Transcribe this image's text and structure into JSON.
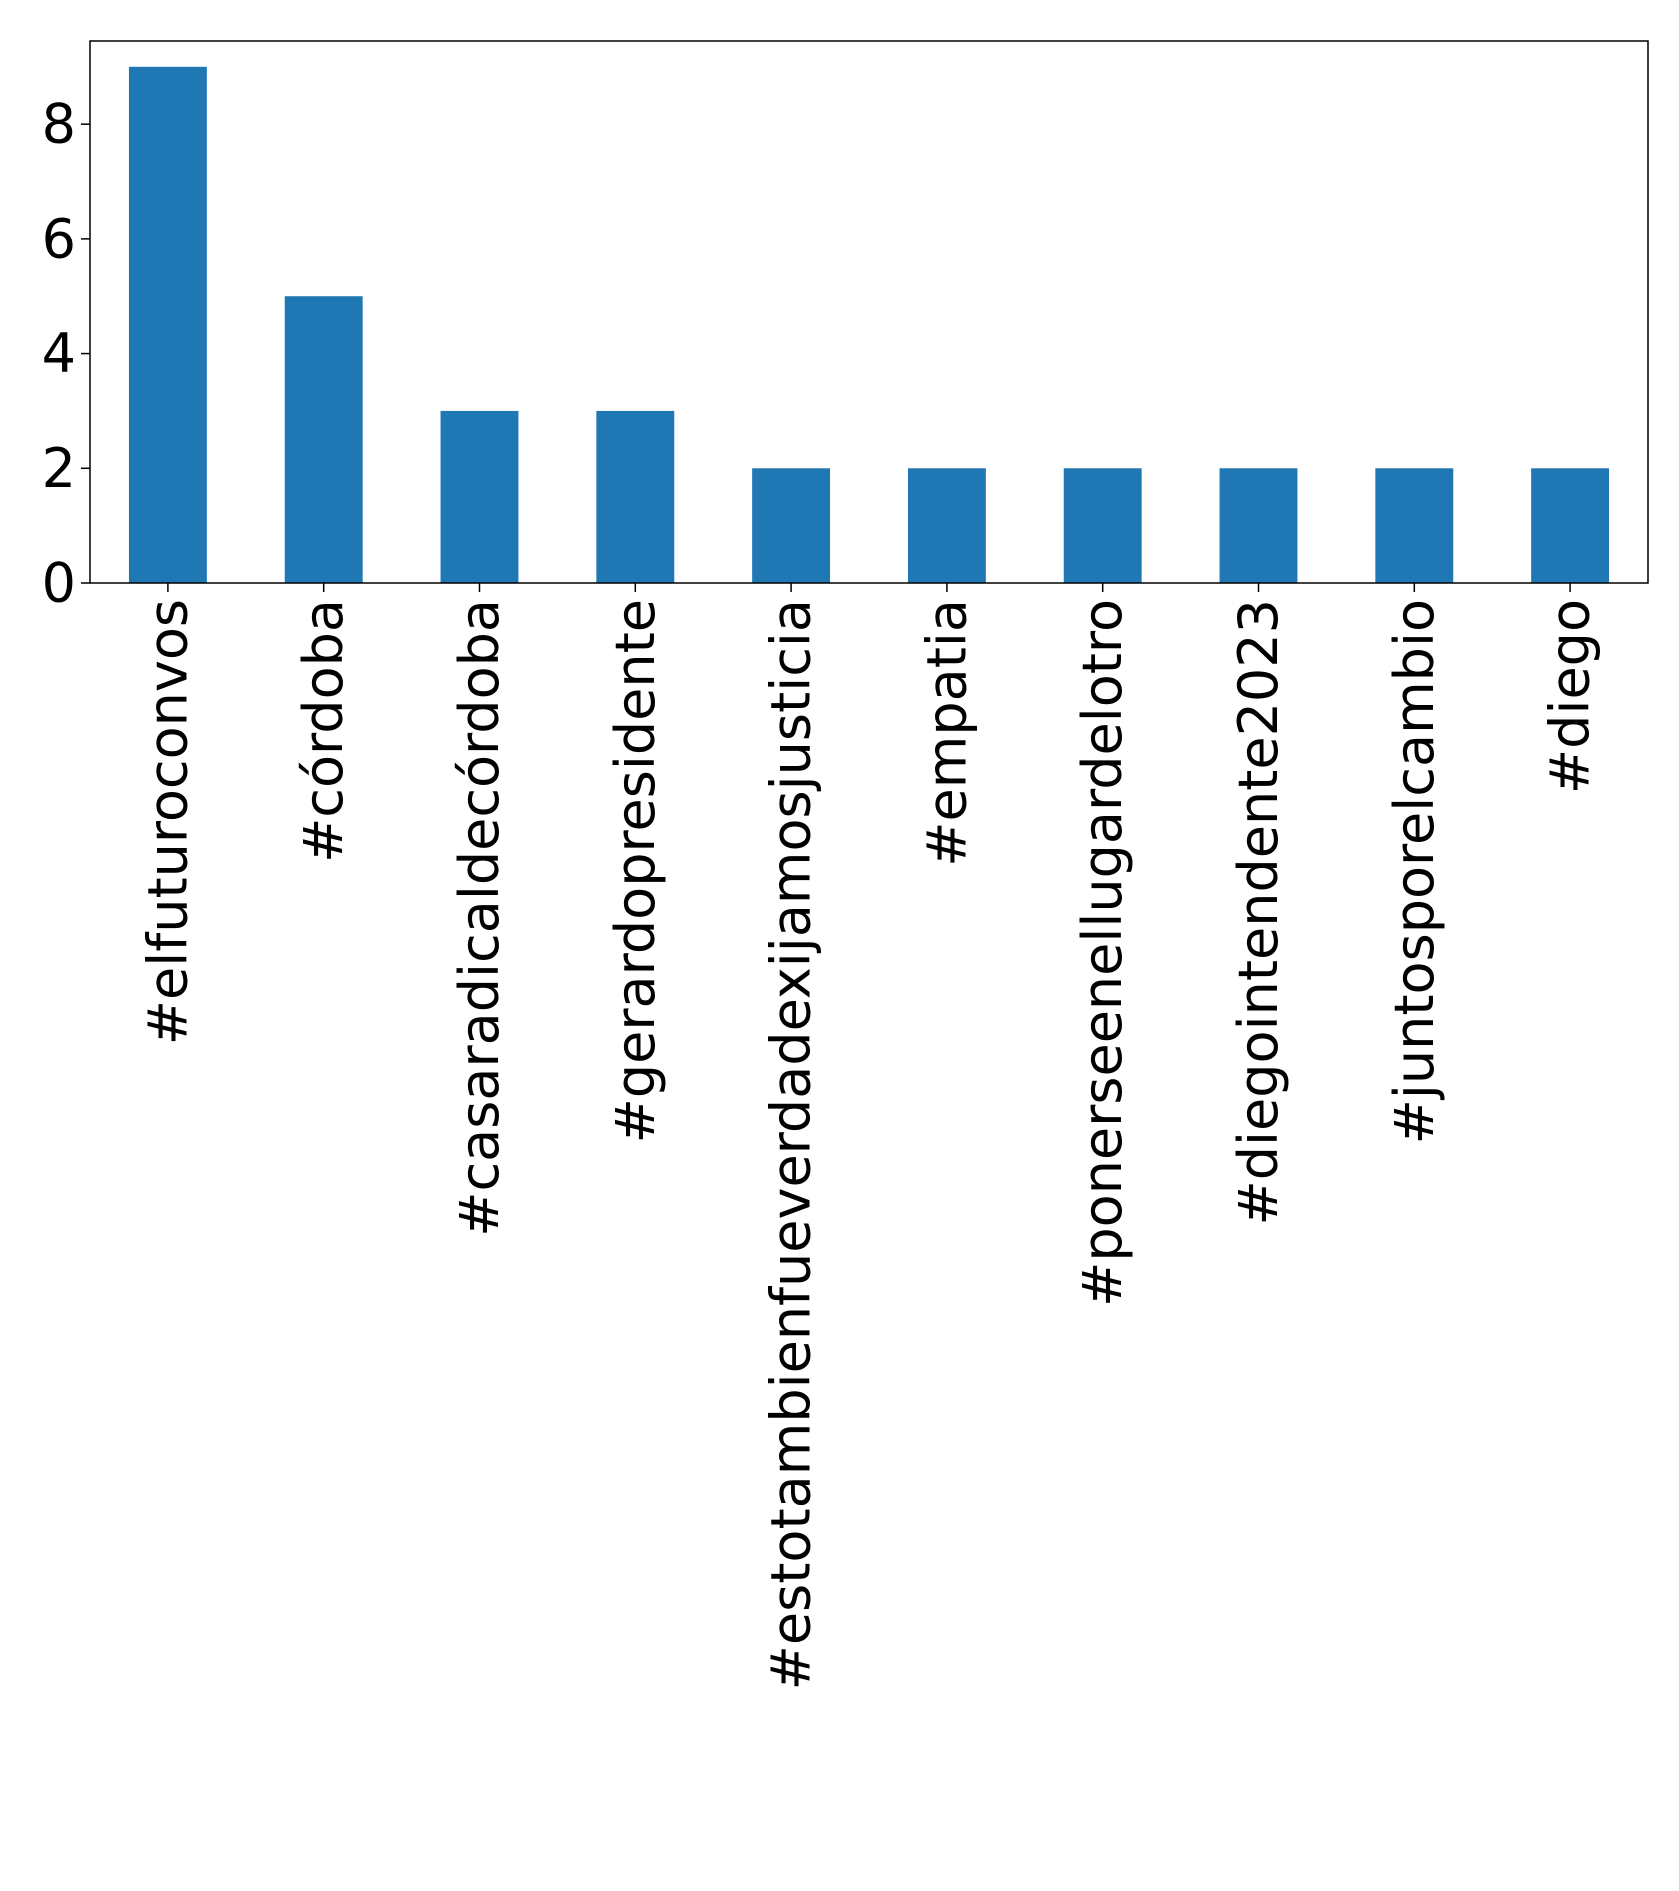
{
  "chart_data": {
    "type": "bar",
    "title": "",
    "xlabel": "",
    "ylabel": "",
    "categories": [
      "#elfuturoconvos",
      "#córdoba",
      "#casaradicaldecórdoba",
      "#gerardopresidente",
      "#estotambienfueverdadexijamosjusticia",
      "#empatia",
      "#ponerseenellugardelotro",
      "#diegointendente2023",
      "#juntosporelcambio",
      "#diego"
    ],
    "values": [
      9,
      5,
      3,
      3,
      2,
      2,
      2,
      2,
      2,
      2
    ],
    "ylim": [
      0,
      9.45
    ],
    "yticks": [
      0,
      2,
      4,
      6,
      8
    ],
    "grid": false,
    "legend": "none",
    "bar_color": "#1f77b4"
  }
}
